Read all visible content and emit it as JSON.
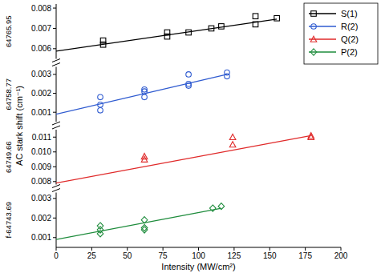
{
  "chart_data": [
    {
      "type": "scatter",
      "annotation": "64765.95",
      "y_label": "AC stark shift (cm⁻¹)",
      "legend": "top-right",
      "tick_labels": "y",
      "xlim": [
        0,
        200
      ],
      "ylim": [
        0.0055,
        0.0082
      ],
      "yticks": [
        0.006,
        0.007,
        0.008
      ],
      "series": [
        {
          "name": "S(1)",
          "color": "#000000",
          "marker": "square",
          "x": [
            33,
            33,
            78,
            78,
            93,
            109,
            116,
            140,
            140,
            155
          ],
          "values": [
            0.0064,
            0.0062,
            0.0068,
            0.0066,
            0.0068,
            0.007,
            0.0071,
            0.0076,
            0.0072,
            0.0075
          ],
          "fit_x": [
            0,
            155
          ],
          "fit_values": [
            0.00588,
            0.00746
          ]
        }
      ]
    },
    {
      "type": "scatter",
      "annotation": "64758.77",
      "tick_labels": "y",
      "xlim": [
        0,
        200
      ],
      "ylim": [
        0.0005,
        0.0034
      ],
      "yticks": [
        0.001,
        0.002,
        0.003
      ],
      "series": [
        {
          "name": "R(2)",
          "color": "#2f5bd0",
          "marker": "circle",
          "x": [
            31,
            31,
            31,
            62,
            62,
            62,
            93,
            93,
            93,
            120,
            120
          ],
          "values": [
            0.0018,
            0.0014,
            0.0011,
            0.0022,
            0.0021,
            0.0018,
            0.003,
            0.0025,
            0.0024,
            0.0031,
            0.0029
          ],
          "fit_x": [
            0,
            120
          ],
          "fit_values": [
            0.0009,
            0.003
          ]
        }
      ]
    },
    {
      "type": "scatter",
      "annotation": "64749.66",
      "tick_labels": "y",
      "xlim": [
        0,
        200
      ],
      "ylim": [
        0.0078,
        0.0115
      ],
      "yticks": [
        0.008,
        0.009,
        {
          "value": 0.01,
          "label": "0.010"
        },
        0.011
      ],
      "series": [
        {
          "name": "Q(2)",
          "color": "#e02a2a",
          "marker": "triangle",
          "x": [
            62,
            62,
            124,
            124,
            179,
            179
          ],
          "values": [
            0.0097,
            0.0095,
            0.011,
            0.0105,
            0.0111,
            0.011
          ],
          "fit_x": [
            0,
            179
          ],
          "fit_values": [
            0.0079,
            0.0111
          ]
        }
      ]
    },
    {
      "type": "scatter",
      "annotation": "f-64743.69",
      "x_label": "Intensity (MW/cm²)",
      "xlim": [
        0,
        200
      ],
      "xticks": [
        0,
        25,
        50,
        75,
        100,
        125,
        150,
        175,
        200
      ],
      "ylim": [
        0.0005,
        0.0033
      ],
      "yticks": [
        0.001,
        0.002,
        0.003
      ],
      "series": [
        {
          "name": "P(2)",
          "color": "#1e8c3c",
          "marker": "diamond",
          "x": [
            31,
            31,
            31,
            62,
            62,
            62,
            110,
            116
          ],
          "values": [
            0.0016,
            0.0014,
            0.0012,
            0.0019,
            0.0015,
            0.0014,
            0.0025,
            0.0026
          ],
          "fit_x": [
            0,
            116
          ],
          "fit_values": [
            0.0009,
            0.0025
          ]
        }
      ]
    }
  ]
}
